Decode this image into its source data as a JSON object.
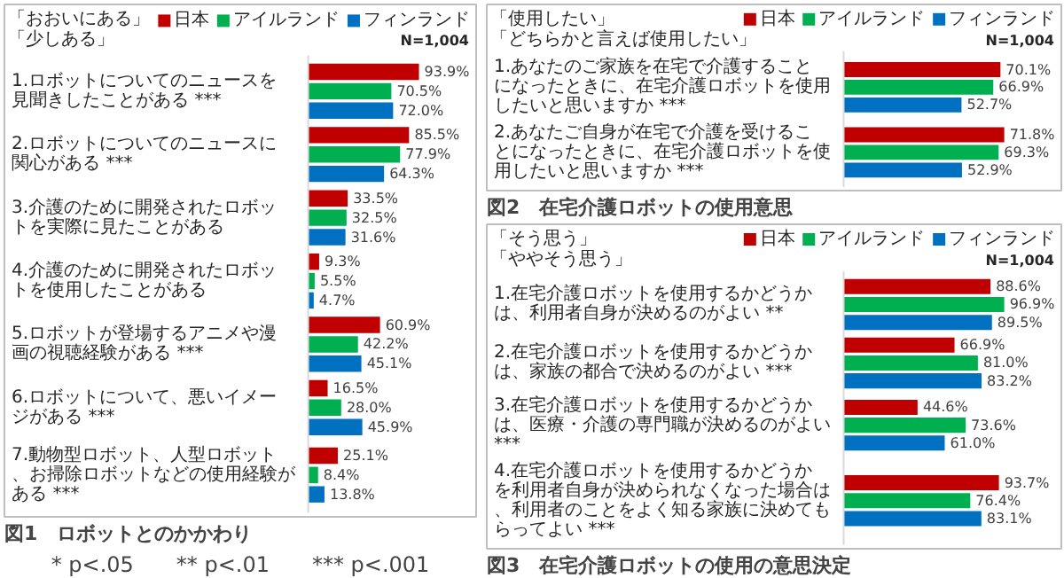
{
  "chart_data": [
    {
      "type": "bar",
      "orientation": "horizontal",
      "title": "図1　ロボットとのかかわり",
      "subtitle": "「おおいにある」「少しある」",
      "legend": "top left",
      "categories": [
        "1.ロボットについてのニュースを見聞きしたことがある ***",
        "2.ロボットについてのニュースに関心がある ***",
        "3.介護のために開発されたロボットを実際に見たことがある",
        "4.介護のために開発されたロボットを使用したことがある",
        "5.ロボットが登場するアニメや漫画の視聴経験がある ***",
        "6.ロボットについて、悪いイメージがある ***",
        "7.動物型ロボット、人型ロボット、お掃除ロボットなどの使用経験がある ***"
      ],
      "series": [
        {
          "name": "日本",
          "color": "#c00000",
          "values": [
            93.9,
            85.5,
            33.5,
            9.3,
            60.9,
            16.5,
            25.1
          ],
          "value_labels": [
            "93.9%",
            "85.5%",
            "33.5%",
            "9.3%",
            "60.9%",
            "16.5%",
            "25.1%"
          ]
        },
        {
          "name": "アイルランド",
          "color": "#00b050",
          "values": [
            70.5,
            77.9,
            32.5,
            5.5,
            42.2,
            28.0,
            8.4
          ],
          "value_labels": [
            "70.5%",
            "77.9%",
            "32.5%",
            "5.5%",
            "42.2%",
            "28.0%",
            "8.4%"
          ]
        },
        {
          "name": "フィンランド",
          "color": "#0070c0",
          "values": [
            72.0,
            64.3,
            31.6,
            4.7,
            45.1,
            45.9,
            13.8
          ],
          "value_labels": [
            "72.0%",
            "64.3%",
            "31.6%",
            "4.7%",
            "45.1%",
            "45.9%",
            "13.8%"
          ]
        }
      ],
      "annotations": [
        "N=1,004",
        "* p<.05　　** p<.01　　*** p<.001"
      ]
    },
    {
      "type": "bar",
      "orientation": "horizontal",
      "title": "図2　在宅介護ロボットの使用意思",
      "subtitle": "「使用したい」「どちらかと言えば使用したい」",
      "legend": "top left",
      "categories": [
        "1.あなたのご家族を在宅で介護することになったときに、在宅介護ロボットを使用したいと思いますか ***",
        "2.あなたご自身が在宅で介護を受けることになったときに、在宅介護ロボットを使用したいと思いますか ***"
      ],
      "series": [
        {
          "name": "日本",
          "color": "#c00000",
          "values": [
            70.1,
            71.8
          ],
          "value_labels": [
            "70.1%",
            "71.8%"
          ]
        },
        {
          "name": "アイルランド",
          "color": "#00b050",
          "values": [
            66.9,
            69.3
          ],
          "value_labels": [
            "66.9%",
            "69.3%"
          ]
        },
        {
          "name": "フィンランド",
          "color": "#0070c0",
          "values": [
            52.7,
            52.9
          ],
          "value_labels": [
            "52.7%",
            "52.9%"
          ]
        }
      ],
      "annotations": [
        "N=1,004"
      ]
    },
    {
      "type": "bar",
      "orientation": "horizontal",
      "title": "図3　在宅介護ロボットの使用の意思決定",
      "subtitle": "「そう思う」「ややそう思う」",
      "legend": "top left",
      "categories": [
        "1.在宅介護ロボットを使用するかどうかは、利用者自身が決めるのがよい **",
        "2.在宅介護ロボットを使用するかどうかは、家族の都合で決めるのがよい ***",
        "3.在宅介護ロボットを使用するかどうかは、医療・介護の専門職が決めるのがよい ***",
        "4.在宅介護ロボットを使用するかどうかを利用者自身が決められなくなった場合は、利用者のことをよく知る家族に決めてもらってよい ***"
      ],
      "series": [
        {
          "name": "日本",
          "color": "#c00000",
          "values": [
            88.6,
            66.9,
            44.6,
            93.7
          ],
          "value_labels": [
            "88.6%",
            "66.9%",
            "44.6%",
            "93.7%"
          ]
        },
        {
          "name": "アイルランド",
          "color": "#00b050",
          "values": [
            96.9,
            81.0,
            73.6,
            76.4
          ],
          "value_labels": [
            "96.9%",
            "81.0%",
            "73.6%",
            "76.4%"
          ]
        },
        {
          "name": "フィンランド",
          "color": "#0070c0",
          "values": [
            89.5,
            83.2,
            61.0,
            83.1
          ],
          "value_labels": [
            "89.5%",
            "83.2%",
            "61.0%",
            "83.1%"
          ]
        }
      ],
      "annotations": [
        "N=1,004"
      ]
    }
  ]
}
